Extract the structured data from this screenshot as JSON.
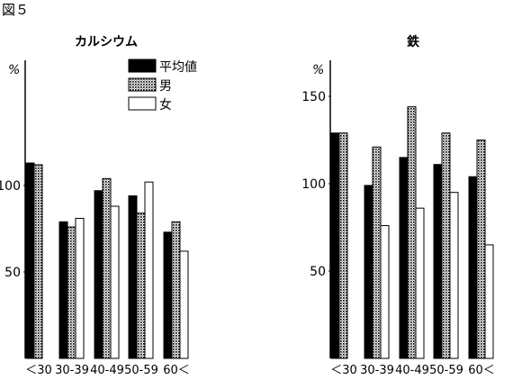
{
  "figure_label": "図５",
  "legend": [
    {
      "label": "平均値",
      "pattern": "solid"
    },
    {
      "label": "男",
      "pattern": "dotted"
    },
    {
      "label": "女",
      "pattern": "empty"
    }
  ],
  "colors": {
    "bar_fill": "#000000",
    "dot": "#000000",
    "background": "#ffffff"
  },
  "chart_data": [
    {
      "type": "bar",
      "title": "カルシウム",
      "unit": "%",
      "categories": [
        "＜30",
        "30-39",
        "40-49",
        "50-59",
        "60＜"
      ],
      "ylim": [
        0,
        160
      ],
      "y_ticks": [
        50,
        100
      ],
      "grid": false,
      "series": [
        {
          "name": "平均値",
          "values": [
            113,
            79,
            97,
            94,
            73
          ]
        },
        {
          "name": "男",
          "values": [
            112,
            76,
            104,
            84,
            79
          ]
        },
        {
          "name": "女",
          "values": [
            null,
            81,
            88,
            102,
            62
          ]
        }
      ]
    },
    {
      "type": "bar",
      "title": "鉄",
      "unit": "%",
      "categories": [
        "＜30",
        "30-39",
        "40-49",
        "50-59",
        "60＜"
      ],
      "ylim": [
        0,
        160
      ],
      "y_ticks": [
        50,
        100,
        150
      ],
      "grid": false,
      "series": [
        {
          "name": "平均値",
          "values": [
            129,
            99,
            115,
            111,
            104
          ]
        },
        {
          "name": "男",
          "values": [
            129,
            121,
            144,
            129,
            125
          ]
        },
        {
          "name": "女",
          "values": [
            null,
            76,
            86,
            95,
            65
          ]
        }
      ]
    }
  ]
}
